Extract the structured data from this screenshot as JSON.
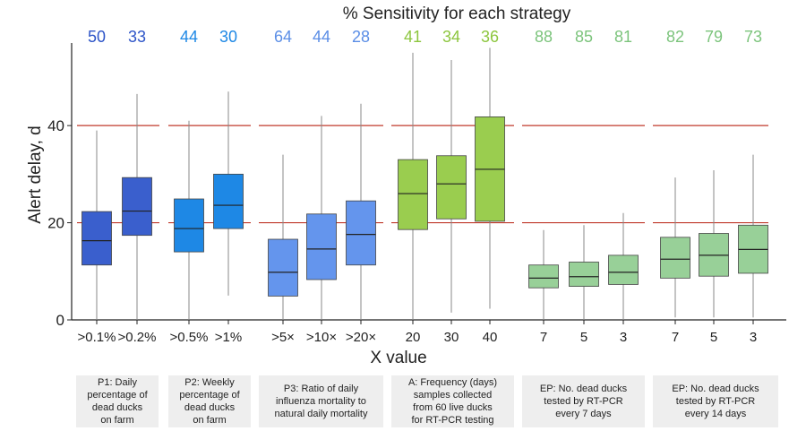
{
  "chart_data": {
    "type": "box",
    "title": "% Sensitivity for each strategy",
    "xlabel": "X value",
    "ylabel": "Alert delay, d",
    "ylim": [
      0,
      57
    ],
    "yticks": [
      0,
      20,
      40
    ],
    "reference_lines": [
      20,
      40
    ],
    "grid": false,
    "groups": [
      {
        "caption": "P1: Daily\npercentage of\ndead ducks\non farm",
        "color": "#3a5fcd",
        "boxes": [
          {
            "label": ">0.1%",
            "sensitivity": "50",
            "whisker_low": 0,
            "q1": 11.3,
            "median": 16.3,
            "q3": 22.3,
            "whisker_high": 39
          },
          {
            "label": ">0.2%",
            "sensitivity": "33",
            "whisker_low": 0,
            "q1": 17.4,
            "median": 22.4,
            "q3": 29.3,
            "whisker_high": 46.5
          }
        ]
      },
      {
        "caption": "P2: Weekly\npercentage of\ndead ducks\non farm",
        "color": "#1e88e5",
        "boxes": [
          {
            "label": ">0.5%",
            "sensitivity": "44",
            "whisker_low": 0,
            "q1": 14,
            "median": 18.8,
            "q3": 24.9,
            "whisker_high": 41
          },
          {
            "label": ">1%",
            "sensitivity": "30",
            "whisker_low": 5,
            "q1": 18.8,
            "median": 23.6,
            "q3": 30,
            "whisker_high": 47
          }
        ]
      },
      {
        "caption": "P3: Ratio of daily\ninfluenza mortality to\nnatural daily mortality",
        "color": "#6495ed",
        "boxes": [
          {
            "label": ">5×",
            "sensitivity": "64",
            "whisker_low": 0,
            "q1": 4.9,
            "median": 9.8,
            "q3": 16.6,
            "whisker_high": 34
          },
          {
            "label": ">10×",
            "sensitivity": "44",
            "whisker_low": 0,
            "q1": 8.3,
            "median": 14.6,
            "q3": 21.8,
            "whisker_high": 42
          },
          {
            "label": ">20×",
            "sensitivity": "28",
            "whisker_low": 0,
            "q1": 11.3,
            "median": 17.6,
            "q3": 24.5,
            "whisker_high": 44.5
          }
        ]
      },
      {
        "caption": "A: Frequency (days)\nsamples collected\nfrom 60 live ducks\nfor RT-PCR testing",
        "color": "#9acd4f",
        "boxes": [
          {
            "label": "20",
            "sensitivity": "41",
            "whisker_low": 0,
            "q1": 18.6,
            "median": 26,
            "q3": 33,
            "whisker_high": 55
          },
          {
            "label": "30",
            "sensitivity": "34",
            "whisker_low": 1.5,
            "q1": 20.8,
            "median": 28,
            "q3": 33.8,
            "whisker_high": 53.5
          },
          {
            "label": "40",
            "sensitivity": "36",
            "whisker_low": 2.3,
            "q1": 20.3,
            "median": 31,
            "q3": 41.8,
            "whisker_high": 56
          }
        ]
      },
      {
        "caption": "EP: No. dead ducks\ntested by RT-PCR\nevery 7 days",
        "color": "#98d098",
        "boxes": [
          {
            "label": "7",
            "sensitivity": "88",
            "whisker_low": 0,
            "q1": 6.6,
            "median": 8.6,
            "q3": 11.3,
            "whisker_high": 18.5
          },
          {
            "label": "5",
            "sensitivity": "85",
            "whisker_low": 0,
            "q1": 6.9,
            "median": 8.9,
            "q3": 11.9,
            "whisker_high": 19.5
          },
          {
            "label": "3",
            "sensitivity": "81",
            "whisker_low": 0,
            "q1": 7.3,
            "median": 9.8,
            "q3": 13.3,
            "whisker_high": 22
          }
        ]
      },
      {
        "caption": "EP: No. dead ducks\ntested by RT-PCR\nevery 14 days",
        "color": "#98d098",
        "boxes": [
          {
            "label": "7",
            "sensitivity": "82",
            "whisker_low": 0.5,
            "q1": 8.6,
            "median": 12.5,
            "q3": 17,
            "whisker_high": 29.3
          },
          {
            "label": "5",
            "sensitivity": "79",
            "whisker_low": 0.5,
            "q1": 9,
            "median": 13.3,
            "q3": 17.8,
            "whisker_high": 30.8
          },
          {
            "label": "3",
            "sensitivity": "73",
            "whisker_low": 0.5,
            "q1": 9.6,
            "median": 14.5,
            "q3": 19.5,
            "whisker_high": 34
          }
        ]
      }
    ]
  },
  "colors": {
    "sensitivity_text": {
      "P1": "#2e55c8",
      "P2": "#1e88e5",
      "P3": "#5b8ee6",
      "A": "#8dc63f",
      "EP": "#7cc47c"
    },
    "reference_line": "#c0392b",
    "caption_bg": "#eeeeee"
  }
}
